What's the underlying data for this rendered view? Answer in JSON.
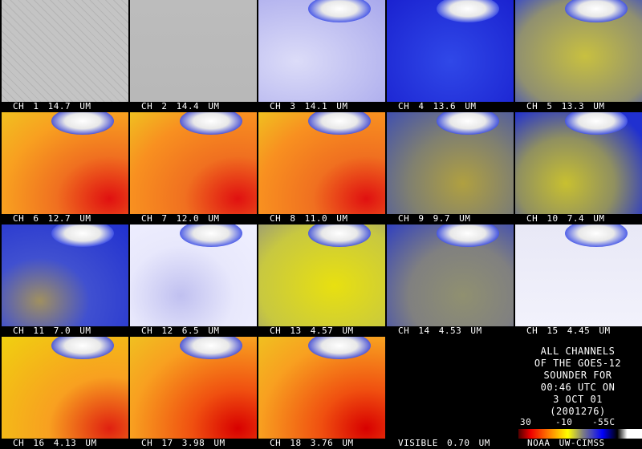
{
  "panels": [
    {
      "label": "CH 1 14.7 UM"
    },
    {
      "label": "CH 2 14.4 UM"
    },
    {
      "label": "CH 3 14.1 UM"
    },
    {
      "label": "CH 4 13.6 UM"
    },
    {
      "label": "CH 5 13.3 UM"
    },
    {
      "label": "CH 6 12.7 UM"
    },
    {
      "label": "CH 7 12.0 UM"
    },
    {
      "label": "CH 8 11.0 UM"
    },
    {
      "label": "CH 9 9.7 UM"
    },
    {
      "label": "CH 10 7.4 UM"
    },
    {
      "label": "CH 11 7.0 UM"
    },
    {
      "label": "CH 12 6.5 UM"
    },
    {
      "label": "CH 13 4.57 UM"
    },
    {
      "label": "CH 14 4.53 UM"
    },
    {
      "label": "CH 15 4.45 UM"
    },
    {
      "label": "CH 16 4.13 UM"
    },
    {
      "label": "CH 17 3.98 UM"
    },
    {
      "label": "CH 18 3.76 UM"
    },
    {
      "label": "VISIBLE 0.70 UM"
    }
  ],
  "info": {
    "lines": [
      "ALL CHANNELS",
      "OF THE GOES-12",
      "SOUNDER FOR",
      "00:46 UTC ON",
      "3 OCT 01",
      "(2001276)"
    ]
  },
  "legend": {
    "ticks": [
      "30",
      "-10",
      "-55C"
    ],
    "credit": "NOAA UW-CIMSS"
  }
}
